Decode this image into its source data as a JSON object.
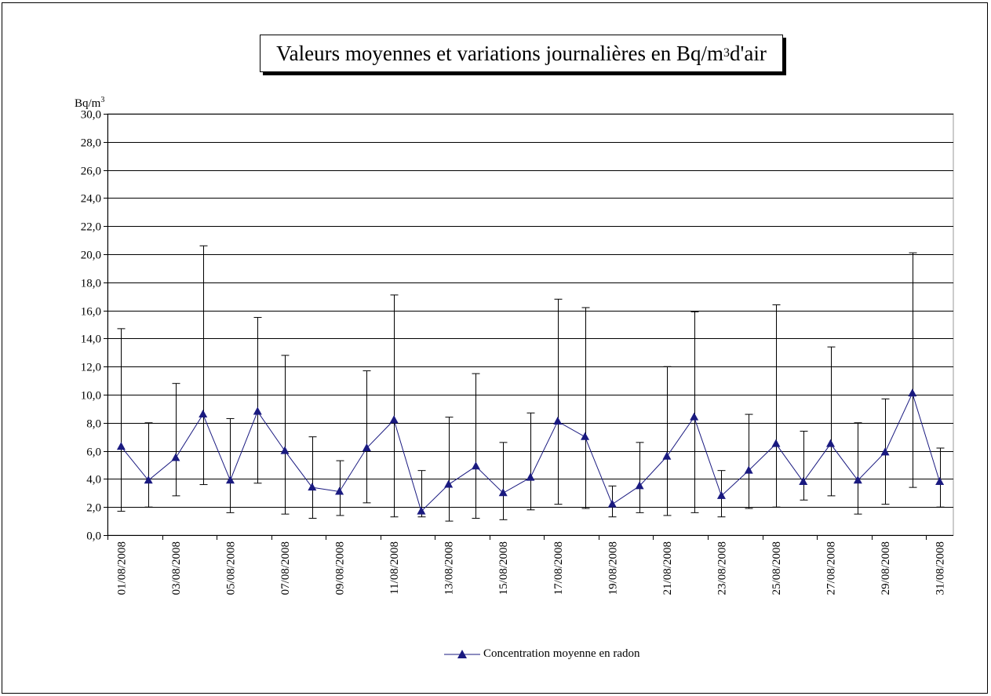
{
  "chart_data": {
    "type": "line",
    "title": {
      "before": "Valeurs moyennes et variations journalières en Bq/m",
      "sup": "3",
      "after": " d'air"
    },
    "ylabel": {
      "base": "Bq/m",
      "sup": "3"
    },
    "ylim": [
      0,
      30
    ],
    "ytick_step": 2,
    "ytick_labels": [
      "0,0",
      "2,0",
      "4,0",
      "6,0",
      "8,0",
      "10,0",
      "12,0",
      "14,0",
      "16,0",
      "18,0",
      "20,0",
      "22,0",
      "24,0",
      "26,0",
      "28,0",
      "30,0"
    ],
    "grid": true,
    "legend_position": "bottom-center",
    "x": [
      "01/08/2008",
      "02/08/2008",
      "03/08/2008",
      "04/08/2008",
      "05/08/2008",
      "06/08/2008",
      "07/08/2008",
      "08/08/2008",
      "09/08/2008",
      "10/08/2008",
      "11/08/2008",
      "12/08/2008",
      "13/08/2008",
      "14/08/2008",
      "15/08/2008",
      "16/08/2008",
      "17/08/2008",
      "18/08/2008",
      "19/08/2008",
      "20/08/2008",
      "21/08/2008",
      "22/08/2008",
      "23/08/2008",
      "24/08/2008",
      "25/08/2008",
      "26/08/2008",
      "27/08/2008",
      "28/08/2008",
      "29/08/2008",
      "30/08/2008",
      "31/08/2008"
    ],
    "x_tick_labels_shown": [
      "01/08/2008",
      "03/08/2008",
      "05/08/2008",
      "07/08/2008",
      "09/08/2008",
      "11/08/2008",
      "13/08/2008",
      "15/08/2008",
      "17/08/2008",
      "19/08/2008",
      "21/08/2008",
      "23/08/2008",
      "25/08/2008",
      "27/08/2008",
      "29/08/2008",
      "31/08/2008"
    ],
    "series": [
      {
        "name": "Concentration moyenne en radon",
        "color": "#1a1a80",
        "marker": "triangle",
        "values": [
          6.3,
          3.9,
          5.5,
          8.6,
          3.9,
          8.8,
          6.0,
          3.4,
          3.1,
          6.2,
          8.2,
          1.7,
          3.6,
          4.9,
          3.0,
          4.1,
          8.1,
          7.0,
          2.2,
          3.5,
          5.6,
          8.4,
          2.8,
          4.6,
          6.5,
          3.8,
          6.5,
          3.9,
          5.9,
          10.1,
          3.8
        ],
        "min": [
          1.7,
          2.0,
          2.8,
          3.6,
          1.6,
          3.7,
          1.5,
          1.2,
          1.4,
          2.3,
          1.3,
          1.3,
          1.0,
          1.2,
          1.1,
          1.8,
          2.2,
          1.9,
          1.3,
          1.6,
          1.4,
          1.6,
          1.3,
          1.9,
          2.0,
          2.5,
          2.8,
          1.5,
          2.2,
          3.4,
          2.0
        ],
        "max": [
          14.7,
          8.0,
          10.8,
          20.6,
          8.3,
          15.5,
          12.8,
          7.0,
          5.3,
          11.7,
          17.1,
          4.6,
          8.4,
          11.5,
          6.6,
          8.7,
          16.8,
          16.2,
          3.5,
          6.6,
          12.0,
          15.9,
          4.6,
          8.6,
          16.4,
          7.4,
          13.4,
          8.0,
          9.7,
          20.1,
          6.2
        ]
      }
    ]
  }
}
